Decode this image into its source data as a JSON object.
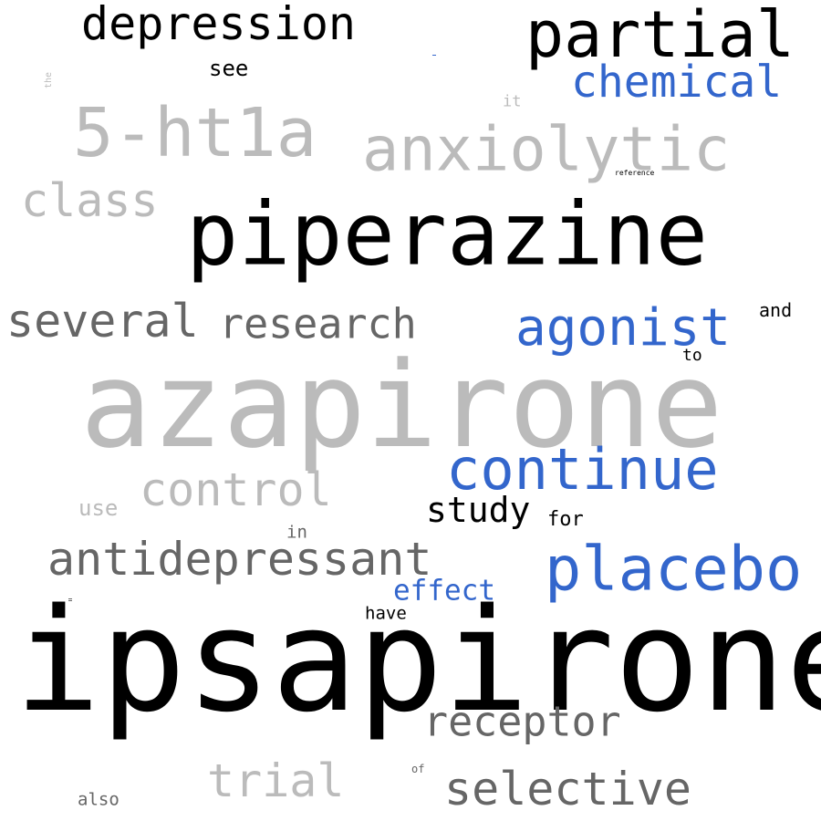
{
  "palette": {
    "black": "#000000",
    "blue": "#3366cc",
    "light_gray": "#bbbbbb",
    "dark_gray": "#666666"
  },
  "words": [
    {
      "id": "ipsapirone",
      "text": "ipsapirone",
      "color": "black"
    },
    {
      "id": "azapirone",
      "text": "azapirone",
      "color": "light_gray"
    },
    {
      "id": "piperazine",
      "text": "piperazine",
      "color": "black"
    },
    {
      "id": "partial",
      "text": "partial",
      "color": "black"
    },
    {
      "id": "5-ht1a",
      "text": "5-ht1a",
      "color": "light_gray"
    },
    {
      "id": "anxiolytic",
      "text": "anxiolytic",
      "color": "light_gray"
    },
    {
      "id": "placebo",
      "text": "placebo",
      "color": "blue"
    },
    {
      "id": "continue",
      "text": "continue",
      "color": "blue"
    },
    {
      "id": "depression",
      "text": "depression",
      "color": "black"
    },
    {
      "id": "chemical",
      "text": "chemical",
      "color": "blue"
    },
    {
      "id": "agonist",
      "text": "agonist",
      "color": "blue"
    },
    {
      "id": "class",
      "text": "class",
      "color": "light_gray"
    },
    {
      "id": "several",
      "text": "several",
      "color": "dark_gray"
    },
    {
      "id": "research",
      "text": "research",
      "color": "dark_gray"
    },
    {
      "id": "control",
      "text": "control",
      "color": "light_gray"
    },
    {
      "id": "antidepressant",
      "text": "antidepressant",
      "color": "dark_gray"
    },
    {
      "id": "selective",
      "text": "selective",
      "color": "dark_gray"
    },
    {
      "id": "receptor",
      "text": "receptor",
      "color": "dark_gray"
    },
    {
      "id": "trial",
      "text": "trial",
      "color": "light_gray"
    },
    {
      "id": "study",
      "text": "study",
      "color": "black"
    },
    {
      "id": "effect",
      "text": "effect",
      "color": "blue"
    },
    {
      "id": "see",
      "text": "see",
      "color": "black"
    },
    {
      "id": "use",
      "text": "use",
      "color": "light_gray"
    },
    {
      "id": "for",
      "text": "for",
      "color": "black"
    },
    {
      "id": "and",
      "text": "and",
      "color": "black"
    },
    {
      "id": "have",
      "text": "have",
      "color": "black"
    },
    {
      "id": "also",
      "text": "also",
      "color": "dark_gray"
    },
    {
      "id": "in",
      "text": "in",
      "color": "dark_gray"
    },
    {
      "id": "to",
      "text": "to",
      "color": "black"
    },
    {
      "id": "it",
      "text": "it",
      "color": "light_gray"
    },
    {
      "id": "of",
      "text": "of",
      "color": "dark_gray"
    },
    {
      "id": "the",
      "text": "the",
      "color": "light_gray"
    },
    {
      "id": "reference",
      "text": "reference",
      "color": "black"
    }
  ]
}
